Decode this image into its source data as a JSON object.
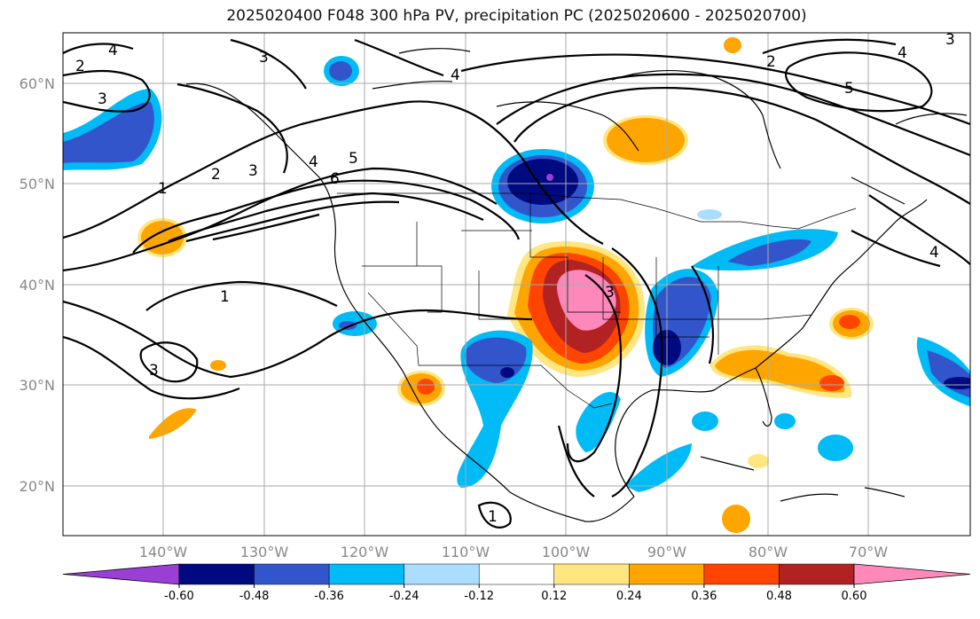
{
  "title": "2025020400 F048 300 hPa PV, precipitation PC (2025020600 - 2025020700)",
  "lat_labels": [
    "60°N",
    "50°N",
    "40°N",
    "30°N",
    "20°N"
  ],
  "lon_labels": [
    "140°W",
    "130°W",
    "120°W",
    "110°W",
    "100°W",
    "90°W",
    "80°W",
    "70°W"
  ],
  "colorbar": {
    "ticks": [
      "-0.60",
      "-0.48",
      "-0.36",
      "-0.24",
      "-0.12",
      "0.12",
      "0.24",
      "0.36",
      "0.48",
      "0.60"
    ],
    "colors": [
      "#9a3fd6",
      "#000a80",
      "#3355cc",
      "#00bbf5",
      "#aaddff",
      "#ffffff",
      "#ffe680",
      "#ffa500",
      "#ff4400",
      "#b22222",
      "#ff88bb"
    ]
  },
  "contour_labels": {
    "pv_4_nw": "4",
    "pv_2_nw": "2",
    "pv_3_nw": "3",
    "pv_3_ak": "3",
    "pv_4_n": "4",
    "pv_1_w": "1",
    "pv_2_w": "2",
    "pv_3_w": "3",
    "pv_4_w": "4",
    "pv_5_w": "5",
    "pv_6_w": "6",
    "pv_1_sw": "1",
    "pv_3_sw": "3",
    "pv_3_c": "3",
    "pv_1_s": "1",
    "pv_5_ne": "5",
    "pv_4_ne": "4",
    "pv_3_ne": "3",
    "pv_4_e": "4",
    "pv_2_ne": "2"
  }
}
